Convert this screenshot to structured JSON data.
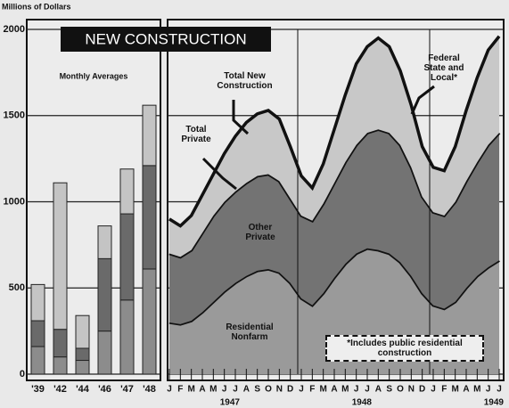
{
  "chart_data": [
    {
      "type": "bar",
      "title": "NEW CONSTRUCTION",
      "subtitle": "Monthly Averages",
      "y_label": "Millions of Dollars",
      "categories": [
        "'39",
        "'42",
        "'44",
        "'46",
        "'47",
        "'48"
      ],
      "series": [
        {
          "color": "#8c8c8c",
          "values": [
            160,
            100,
            80,
            250,
            430,
            610
          ]
        },
        {
          "color": "#6a6a6a",
          "values": [
            150,
            160,
            70,
            420,
            500,
            600
          ]
        },
        {
          "color": "#c4c4c4",
          "values": [
            210,
            850,
            190,
            190,
            260,
            350
          ]
        }
      ],
      "ylim": [
        0,
        2000
      ],
      "yticks": [
        0,
        500,
        1000,
        1500,
        2000
      ],
      "grid": true
    },
    {
      "type": "area",
      "categories": [
        "J",
        "F",
        "M",
        "A",
        "M",
        "J",
        "J",
        "A",
        "S",
        "O",
        "N",
        "D",
        "J",
        "F",
        "M",
        "A",
        "M",
        "J",
        "J",
        "A",
        "S",
        "O",
        "N",
        "D",
        "J",
        "F",
        "M",
        "A",
        "M",
        "J",
        "J"
      ],
      "year_labels": [
        "1947",
        "1948",
        "1949"
      ],
      "series": [
        {
          "name": "Residential Nonfarm",
          "color": "#9a9a9a",
          "values": [
            300,
            290,
            310,
            360,
            420,
            480,
            530,
            570,
            600,
            610,
            590,
            530,
            440,
            400,
            470,
            560,
            640,
            700,
            730,
            720,
            700,
            650,
            570,
            470,
            400,
            380,
            420,
            500,
            570,
            620,
            660
          ]
        },
        {
          "name": "Other Private",
          "color": "#737373",
          "values": [
            400,
            390,
            410,
            460,
            500,
            520,
            530,
            540,
            550,
            550,
            530,
            490,
            480,
            490,
            520,
            550,
            590,
            630,
            670,
            700,
            700,
            680,
            630,
            560,
            540,
            540,
            580,
            620,
            660,
            710,
            740
          ]
        },
        {
          "name": "Federal State and Local*",
          "color": "#c8c8c8",
          "values": [
            200,
            180,
            200,
            220,
            240,
            280,
            320,
            350,
            360,
            370,
            360,
            300,
            230,
            190,
            230,
            310,
            390,
            470,
            500,
            530,
            500,
            430,
            360,
            290,
            260,
            260,
            320,
            410,
            490,
            550,
            560
          ]
        }
      ],
      "annotations": [
        "Total New Construction",
        "Total Private"
      ],
      "note": "*Includes public residential construction",
      "ylim": [
        0,
        2000
      ],
      "yticks": [
        0,
        500,
        1000,
        1500,
        2000
      ],
      "grid": true
    }
  ]
}
